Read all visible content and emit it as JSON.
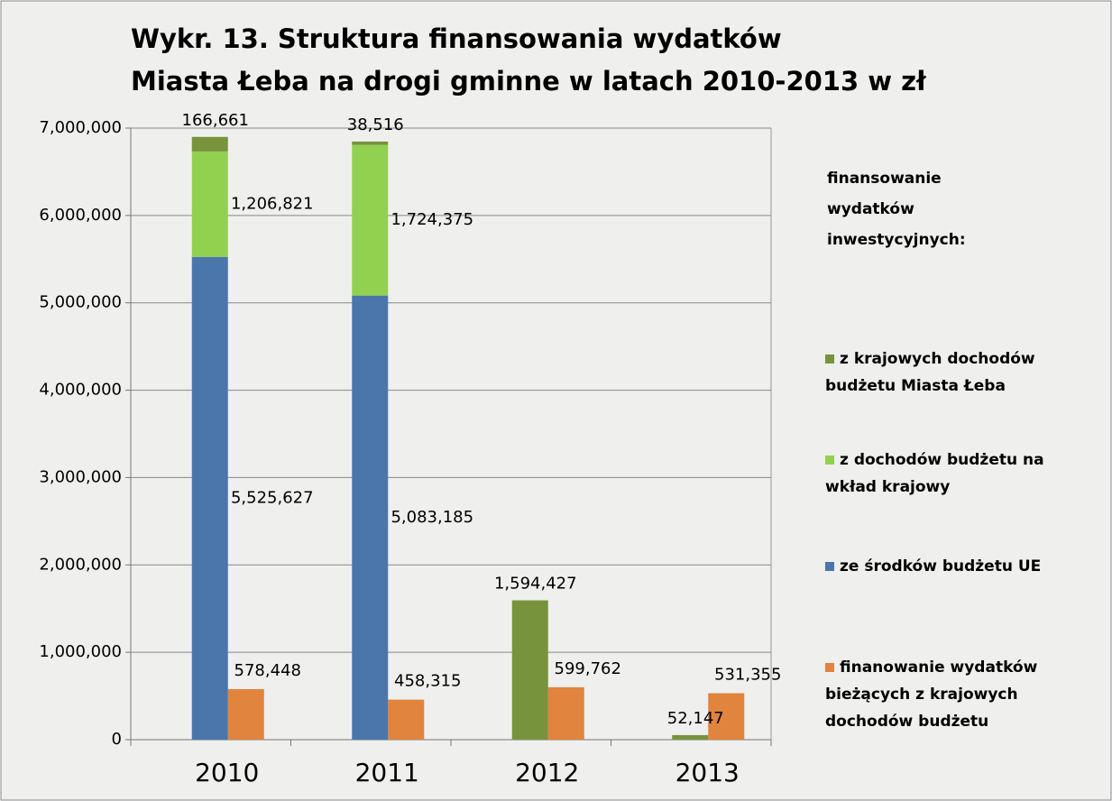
{
  "chart_data": {
    "type": "bar",
    "title": [
      "Wykr. 13. Struktura finansowania wydatków",
      "Miasta Łeba na drogi gminne w latach 2010-2013 w zł"
    ],
    "categories": [
      "2010",
      "2011",
      "2012",
      "2013"
    ],
    "legend_title": "finansowanie wydatków inwestycyjnych:",
    "series": [
      {
        "name": "z krajowych dochodów budżetu Miasta Łeba",
        "color": "#77933c",
        "stack": 0,
        "values": [
          166661,
          38516,
          1594427,
          52147
        ],
        "value_labels": [
          "166,661",
          "38,516",
          "1,594,427",
          "52,147"
        ]
      },
      {
        "name": "z dochodów budżetu na wkład krajowy",
        "color": "#92d050",
        "stack": 0,
        "values": [
          1206821,
          1724375,
          null,
          null
        ],
        "value_labels": [
          "1,206,821",
          "1,724,375",
          null,
          null
        ]
      },
      {
        "name": "ze środków budżetu UE",
        "color": "#4a76ac",
        "stack": 0,
        "values": [
          5525627,
          5083185,
          null,
          null
        ],
        "value_labels": [
          "5,525,627",
          "5,083,185",
          null,
          null
        ]
      },
      {
        "name": "finanowanie wydatków bieżących z krajowych dochodów budżetu",
        "color": "#e0843e",
        "stack": 1,
        "values": [
          578448,
          458315,
          599762,
          531355
        ],
        "value_labels": [
          "578,448",
          "458,315",
          "599,762",
          "531,355"
        ]
      }
    ],
    "ylim": [
      0,
      7000000
    ],
    "yticks": [
      0,
      {
        "value": 1000000,
        "label": "1,000,000"
      },
      {
        "value": 2000000,
        "label": "2,000,000"
      },
      {
        "value": 3000000,
        "label": "3,000,000"
      },
      {
        "value": 4000000,
        "label": "4,000,000"
      },
      {
        "value": 5000000,
        "label": "5,000,000"
      },
      {
        "value": 6000000,
        "label": "6,000,000"
      },
      {
        "value": 7000000,
        "label": "7,000,000"
      }
    ],
    "grid": true,
    "legend": "right"
  }
}
